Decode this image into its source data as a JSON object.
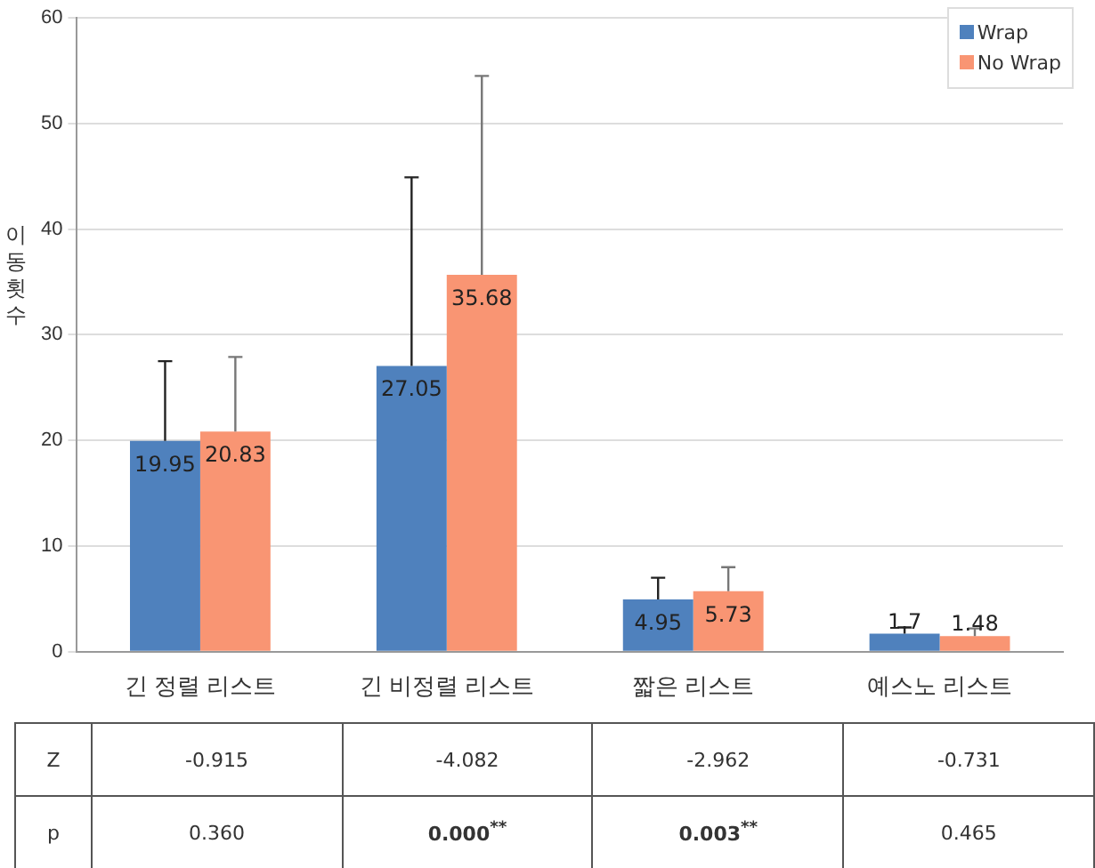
{
  "chart_data": {
    "type": "bar",
    "ylabel": "이동횟수",
    "categories": [
      "긴 정렬 리스트",
      "긴 비정렬 리스트",
      "짧은 리스트",
      "예스노 리스트"
    ],
    "series": [
      {
        "name": "Wrap",
        "color": "#4f81bd",
        "values": [
          19.95,
          27.05,
          4.95,
          1.7
        ],
        "errors": [
          [
            19.95,
            27.5
          ],
          [
            27.05,
            44.9
          ],
          [
            4.95,
            7.0
          ],
          [
            1.7,
            2.3
          ]
        ]
      },
      {
        "name": "No Wrap",
        "color": "#f99573",
        "values": [
          20.83,
          35.68,
          5.73,
          1.48
        ],
        "errors": [
          [
            20.83,
            27.9
          ],
          [
            35.68,
            54.5
          ],
          [
            5.73,
            8.0
          ],
          [
            1.48,
            2.2
          ]
        ]
      }
    ],
    "ylim": [
      0,
      60
    ],
    "yticks": [
      0,
      10,
      20,
      30,
      40,
      50,
      60
    ],
    "grid": "y",
    "legend": "top right",
    "data_labels": true,
    "annotations": [
      "Z",
      "-0.915",
      "-4.082",
      "-2.962",
      "-0.731",
      "p",
      "0.360",
      "0.000$^{**}$",
      "0.003$^{**}$",
      "0.465"
    ]
  }
}
